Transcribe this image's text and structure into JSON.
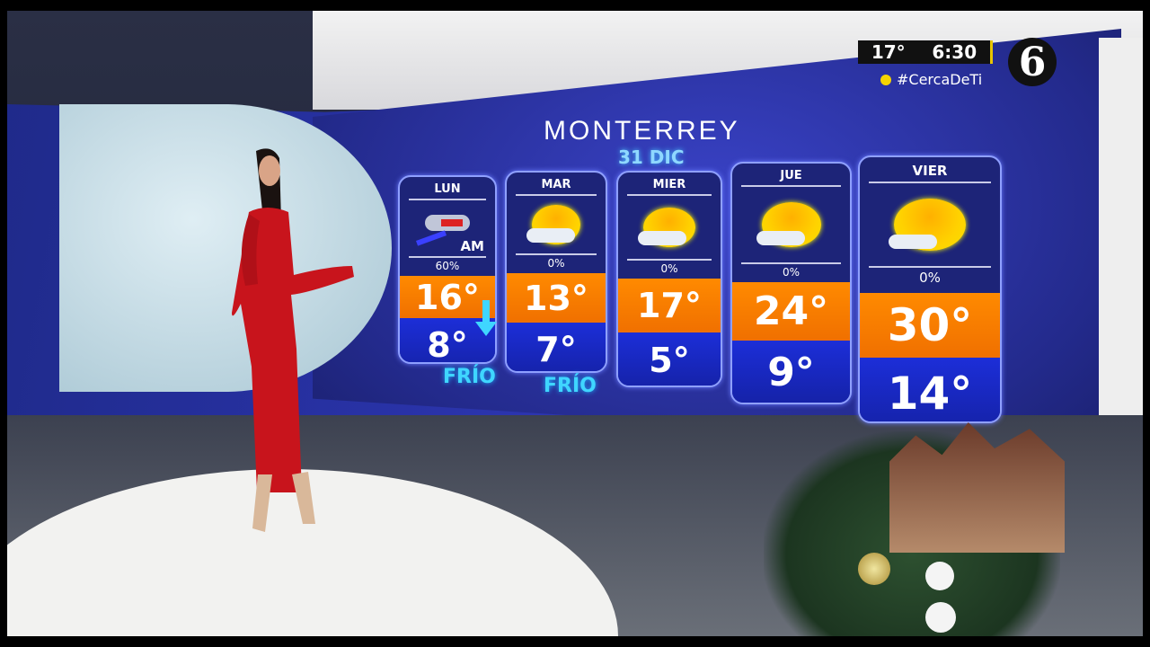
{
  "overlay": {
    "temperature": "17°",
    "time": "6:30",
    "hashtag": "#CercaDeTi",
    "channel_logo": "6"
  },
  "forecast": {
    "city": "MONTERREY",
    "date": "31 DIC",
    "days": [
      {
        "day": "LUN",
        "icon": "storm-wind-icon",
        "icon_note": "AM",
        "precip": "60%",
        "high": "16°",
        "low": "8°"
      },
      {
        "day": "MAR",
        "icon": "sunny-windy-icon",
        "precip": "0%",
        "high": "13°",
        "low": "7°"
      },
      {
        "day": "MIER",
        "icon": "partly-cloudy-icon",
        "precip": "0%",
        "high": "17°",
        "low": "5°"
      },
      {
        "day": "JUE",
        "icon": "partly-cloudy-icon",
        "precip": "0%",
        "high": "24°",
        "low": "9°"
      },
      {
        "day": "VIER",
        "icon": "partly-cloudy-icon",
        "precip": "0%",
        "high": "30°",
        "low": "14°"
      }
    ],
    "labels": [
      "FRÍO",
      "FRÍO"
    ]
  },
  "colors": {
    "high_band": "#ff8a00",
    "low_band": "#1c2ed8",
    "screen": "#2c35b0",
    "dress": "#c8141c"
  }
}
